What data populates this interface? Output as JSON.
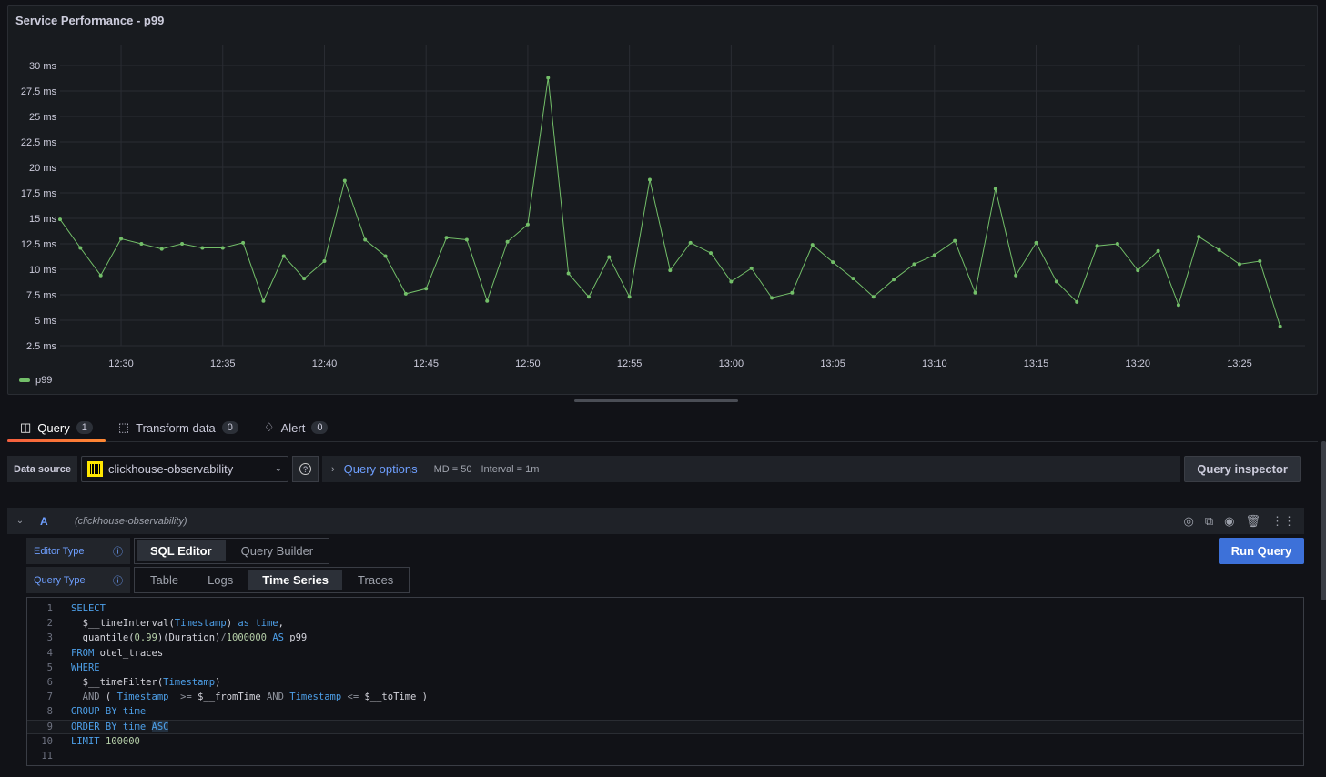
{
  "panel": {
    "title": "Service Performance - p99"
  },
  "chart_data": {
    "type": "line",
    "title": "Service Performance - p99",
    "y_ticks": [
      "2.5 ms",
      "5 ms",
      "7.5 ms",
      "10 ms",
      "12.5 ms",
      "15 ms",
      "17.5 ms",
      "20 ms",
      "22.5 ms",
      "25 ms",
      "27.5 ms",
      "30 ms"
    ],
    "y_tick_values": [
      2.5,
      5,
      7.5,
      10,
      12.5,
      15,
      17.5,
      20,
      22.5,
      25,
      27.5,
      30
    ],
    "ylim": [
      0,
      30
    ],
    "unit": "ms",
    "x_ticks": [
      "12:30",
      "12:35",
      "12:40",
      "12:45",
      "12:50",
      "12:55",
      "13:00",
      "13:05",
      "13:10",
      "13:15",
      "13:20",
      "13:25"
    ],
    "xlim": [
      "12:27",
      "13:28"
    ],
    "grid": true,
    "legend": "bottom-left",
    "color": "#73bf69",
    "series": [
      {
        "name": "p99",
        "x": [
          "12:27",
          "12:28",
          "12:29",
          "12:30",
          "12:31",
          "12:32",
          "12:33",
          "12:34",
          "12:35",
          "12:36",
          "12:37",
          "12:38",
          "12:39",
          "12:40",
          "12:41",
          "12:42",
          "12:43",
          "12:44",
          "12:45",
          "12:46",
          "12:47",
          "12:48",
          "12:49",
          "12:50",
          "12:51",
          "12:52",
          "12:53",
          "12:54",
          "12:55",
          "12:56",
          "12:57",
          "12:58",
          "12:59",
          "13:00",
          "13:01",
          "13:02",
          "13:03",
          "13:04",
          "13:05",
          "13:06",
          "13:07",
          "13:08",
          "13:09",
          "13:10",
          "13:11",
          "13:12",
          "13:13",
          "13:14",
          "13:15",
          "13:16",
          "13:17",
          "13:18",
          "13:19",
          "13:20",
          "13:21",
          "13:22",
          "13:23",
          "13:24",
          "13:25",
          "13:26",
          "13:27"
        ],
        "values": [
          14.9,
          12.1,
          9.4,
          13.0,
          12.5,
          12.0,
          12.5,
          12.1,
          12.1,
          12.6,
          6.9,
          11.3,
          9.1,
          10.8,
          18.7,
          12.9,
          11.3,
          7.6,
          8.1,
          13.1,
          12.9,
          6.9,
          12.7,
          14.4,
          28.8,
          9.6,
          7.3,
          11.2,
          7.3,
          18.8,
          9.9,
          12.6,
          11.6,
          8.8,
          10.1,
          7.2,
          7.7,
          12.4,
          10.7,
          9.1,
          7.3,
          9.0,
          10.5,
          11.4,
          12.8,
          7.7,
          17.9,
          9.4,
          12.6,
          8.8,
          6.8,
          12.3,
          12.5,
          9.9,
          11.8,
          6.5,
          13.2,
          11.9,
          10.5,
          10.8,
          4.4
        ]
      }
    ]
  },
  "tabs": [
    {
      "label": "Query",
      "count": "1",
      "icon": "database-icon"
    },
    {
      "label": "Transform data",
      "count": "0",
      "icon": "transform-icon"
    },
    {
      "label": "Alert",
      "count": "0",
      "icon": "bell-icon"
    }
  ],
  "datasource": {
    "label": "Data source",
    "value": "clickhouse-observability",
    "help": "?"
  },
  "query_options": {
    "label": "Query options",
    "md": "MD = 50",
    "interval": "Interval = 1m"
  },
  "query_inspector": "Query inspector",
  "query": {
    "ref": "A",
    "datasource": "(clickhouse-observability)",
    "icons": [
      "help-icon",
      "duplicate-icon",
      "eye-icon",
      "trash-icon",
      "drag-icon"
    ]
  },
  "editor_type": {
    "label": "Editor Type",
    "options": [
      "SQL Editor",
      "Query Builder"
    ],
    "selected": "SQL Editor"
  },
  "query_type": {
    "label": "Query Type",
    "options": [
      "Table",
      "Logs",
      "Time Series",
      "Traces"
    ],
    "selected": "Time Series"
  },
  "run_query": "Run Query",
  "code": [
    [
      [
        "k",
        "SELECT"
      ]
    ],
    [
      [
        "p",
        "  $__timeInterval("
      ],
      [
        "k",
        "Timestamp"
      ],
      [
        "p",
        ") "
      ],
      [
        "k",
        "as time"
      ],
      [
        "p",
        ","
      ]
    ],
    [
      [
        "p",
        "  quantile("
      ],
      [
        "n",
        "0.99"
      ],
      [
        "p",
        ")(Duration)"
      ],
      [
        "o",
        "/"
      ],
      [
        "n",
        "1000000"
      ],
      [
        "p",
        " "
      ],
      [
        "k",
        "AS"
      ],
      [
        "p",
        " p99"
      ]
    ],
    [
      [
        "k",
        "FROM"
      ],
      [
        "p",
        " otel_traces"
      ]
    ],
    [
      [
        "k",
        "WHERE"
      ]
    ],
    [
      [
        "p",
        "  $__timeFilter("
      ],
      [
        "k",
        "Timestamp"
      ],
      [
        "p",
        ")"
      ]
    ],
    [
      [
        "o",
        "  AND"
      ],
      [
        "p",
        " ( "
      ],
      [
        "k",
        "Timestamp"
      ],
      [
        "o",
        "  >="
      ],
      [
        "p",
        " $__fromTime "
      ],
      [
        "o",
        "AND"
      ],
      [
        "p",
        " "
      ],
      [
        "k",
        "Timestamp"
      ],
      [
        "o",
        " <="
      ],
      [
        "p",
        " $__toTime )"
      ]
    ],
    [
      [
        "k",
        "GROUP BY time"
      ]
    ],
    [
      [
        "k",
        "ORDER BY time "
      ],
      [
        "sel k",
        "ASC"
      ]
    ],
    [
      [
        "k",
        "LIMIT"
      ],
      [
        "p",
        " "
      ],
      [
        "n",
        "100000"
      ]
    ],
    []
  ]
}
